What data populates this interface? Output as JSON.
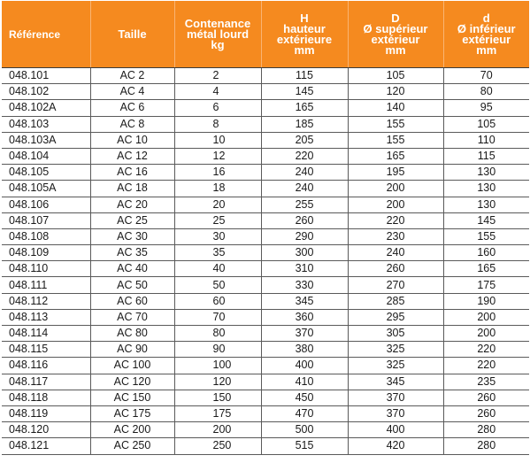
{
  "header": {
    "ref": "Référence",
    "size": "Taille",
    "capacity": [
      "Contenance",
      "métal lourd",
      "kg"
    ],
    "height": [
      "H",
      "hauteur",
      "extérieure",
      "mm"
    ],
    "top_diameter": [
      "D",
      "Ø supérieur",
      "extérieur",
      "mm"
    ],
    "bottom_diameter": [
      "d",
      "Ø inférieur",
      "extérieur",
      "mm"
    ]
  },
  "rows": [
    [
      "048.101",
      "AC 2",
      "2",
      "115",
      "105",
      "70"
    ],
    [
      "048.102",
      "AC 4",
      "4",
      "145",
      "120",
      "80"
    ],
    [
      "048.102A",
      "AC 6",
      "6",
      "165",
      "140",
      "95"
    ],
    [
      "048.103",
      "AC 8",
      "8",
      "185",
      "155",
      "105"
    ],
    [
      "048.103A",
      "AC 10",
      "10",
      "205",
      "155",
      "110"
    ],
    [
      "048.104",
      "AC 12",
      "12",
      "220",
      "165",
      "115"
    ],
    [
      "048.105",
      "AC 16",
      "16",
      "240",
      "195",
      "130"
    ],
    [
      "048.105A",
      "AC 18",
      "18",
      "240",
      "200",
      "130"
    ],
    [
      "048.106",
      "AC 20",
      "20",
      "255",
      "200",
      "130"
    ],
    [
      "048.107",
      "AC 25",
      "25",
      "260",
      "220",
      "145"
    ],
    [
      "048.108",
      "AC 30",
      "30",
      "290",
      "230",
      "155"
    ],
    [
      "048.109",
      "AC 35",
      "35",
      "300",
      "240",
      "160"
    ],
    [
      "048.110",
      "AC 40",
      "40",
      "310",
      "260",
      "165"
    ],
    [
      "048.111",
      "AC 50",
      "50",
      "330",
      "270",
      "175"
    ],
    [
      "048.112",
      "AC 60",
      "60",
      "345",
      "285",
      "190"
    ],
    [
      "048.113",
      "AC 70",
      "70",
      "360",
      "295",
      "200"
    ],
    [
      "048.114",
      "AC 80",
      "80",
      "370",
      "305",
      "200"
    ],
    [
      "048.115",
      "AC 90",
      "90",
      "380",
      "325",
      "220"
    ],
    [
      "048.116",
      "AC 100",
      "100",
      "400",
      "325",
      "220"
    ],
    [
      "048.117",
      "AC 120",
      "120",
      "410",
      "345",
      "235"
    ],
    [
      "048.118",
      "AC 150",
      "150",
      "450",
      "370",
      "260"
    ],
    [
      "048.119",
      "AC 175",
      "175",
      "470",
      "370",
      "260"
    ],
    [
      "048.120",
      "AC 200",
      "200",
      "500",
      "400",
      "280"
    ],
    [
      "048.121",
      "AC 250",
      "250",
      "515",
      "420",
      "280"
    ]
  ],
  "colors": {
    "header_bg": "#f58a1f",
    "header_text": "#ffffff",
    "grid": "#5a5a5a"
  }
}
